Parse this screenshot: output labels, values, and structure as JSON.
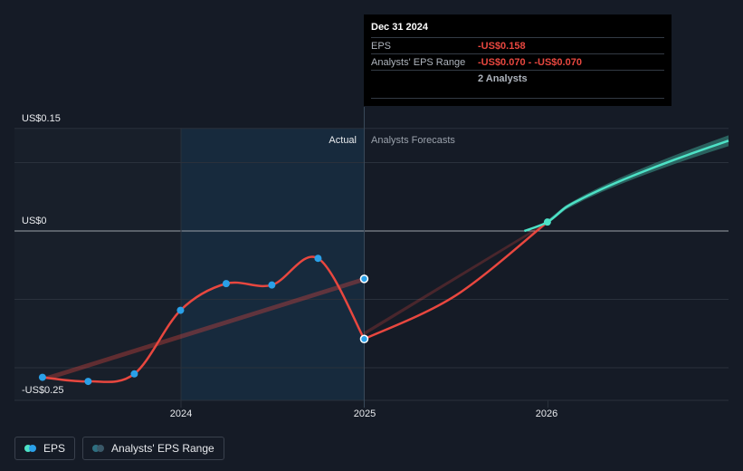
{
  "chart_data": {
    "type": "line",
    "y_labels": [
      "US$0.15",
      "US$0",
      "-US$0.25"
    ],
    "x_ticks": [
      "2024",
      "2025",
      "2026"
    ],
    "region_labels": {
      "actual": "Actual",
      "forecast": "Analysts Forecasts"
    },
    "ylim": [
      -0.25,
      0.15
    ],
    "series": [
      {
        "name": "EPS",
        "color": "#e8473f",
        "x": [
          "2023-03-31",
          "2023-06-30",
          "2023-09-30",
          "2023-12-31",
          "2024-03-31",
          "2024-06-30",
          "2024-09-30",
          "2024-12-31"
        ],
        "values": [
          -0.214,
          -0.22,
          -0.209,
          -0.116,
          -0.077,
          -0.079,
          -0.04,
          -0.158
        ]
      },
      {
        "name": "Analysts' EPS Range",
        "color": "#4de2c6",
        "x": [
          "2024-12-31",
          "2025-12-31",
          "2026-12-31"
        ],
        "values": [
          -0.158,
          0.013,
          0.122
        ]
      }
    ],
    "actual_end_marker": {
      "x": "2024-12-31",
      "value": -0.07
    },
    "legend_placement": "bottom-left",
    "grid": true
  },
  "tooltip": {
    "date": "Dec 31 2024",
    "rows": [
      {
        "key": "EPS",
        "value": "-US$0.158"
      },
      {
        "key": "Analysts' EPS Range",
        "value": "-US$0.070 - -US$0.070"
      },
      {
        "key": "",
        "value": "2 Analysts"
      }
    ]
  },
  "legend": {
    "items": [
      {
        "label": "EPS",
        "colors": [
          "#4de2c6",
          "#2aa0e8"
        ]
      },
      {
        "label": "Analysts' EPS Range",
        "colors": [
          "#2e6f80",
          "#3a5868"
        ]
      }
    ]
  }
}
